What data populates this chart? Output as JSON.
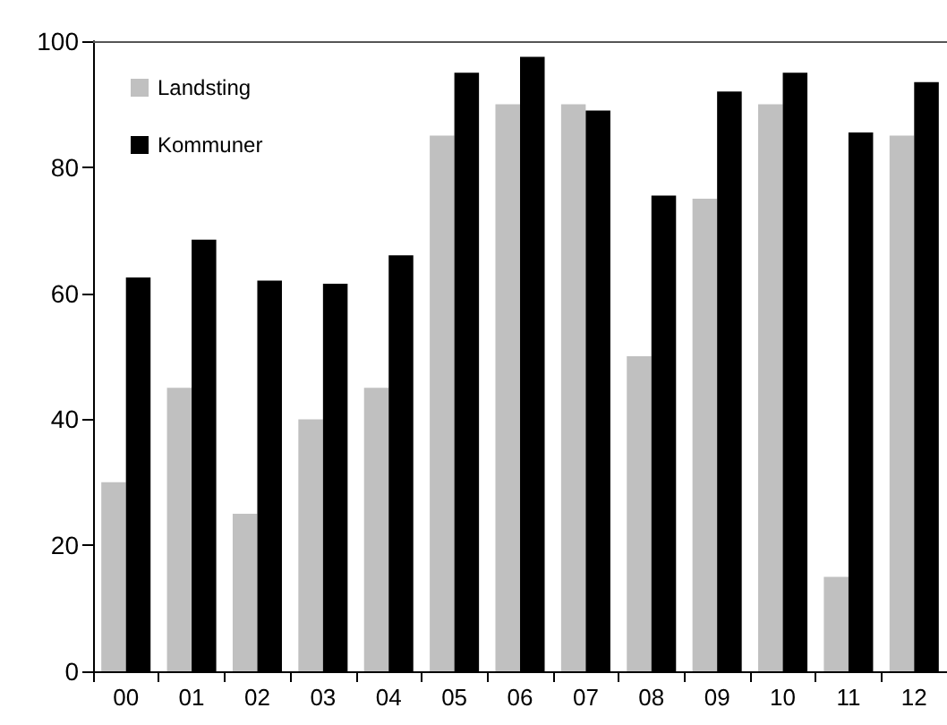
{
  "chart_data": {
    "type": "bar",
    "categories": [
      "00",
      "01",
      "02",
      "03",
      "04",
      "05",
      "06",
      "07",
      "08",
      "09",
      "10",
      "11",
      "12"
    ],
    "series": [
      {
        "name": "Landsting",
        "color": "#c0c0c0",
        "values": [
          30,
          45,
          25,
          40,
          45,
          85,
          90,
          90,
          50,
          75,
          90,
          15,
          85
        ]
      },
      {
        "name": "Kommuner",
        "color": "#000000",
        "values": [
          62.5,
          68.5,
          62,
          61.5,
          66,
          95,
          97.5,
          89,
          75.5,
          92,
          95,
          85.5,
          93.5
        ]
      }
    ],
    "ylim": [
      0,
      100
    ],
    "yticks": [
      0,
      20,
      40,
      60,
      80,
      100
    ],
    "grid": false,
    "legend": "top left"
  }
}
